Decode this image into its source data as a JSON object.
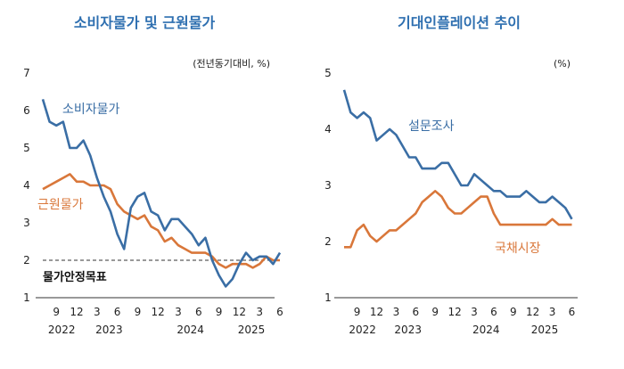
{
  "chart_data": [
    {
      "type": "line",
      "title": "소비자물가 및 근원물가",
      "unit_label": "(전년동기대비, %)",
      "ylim": [
        1,
        7
      ],
      "yticks": [
        "1",
        "2",
        "3",
        "4",
        "5",
        "6",
        "7"
      ],
      "x_tick_labels": [
        "9",
        "12",
        "3",
        "6",
        "9",
        "12",
        "3",
        "6",
        "9",
        "12",
        "3",
        "6"
      ],
      "year_labels": [
        "2022",
        "2023",
        "2024",
        "2025"
      ],
      "x": [
        "2022-07",
        "2022-08",
        "2022-09",
        "2022-10",
        "2022-11",
        "2022-12",
        "2023-01",
        "2023-02",
        "2023-03",
        "2023-04",
        "2023-05",
        "2023-06",
        "2023-07",
        "2023-08",
        "2023-09",
        "2023-10",
        "2023-11",
        "2023-12",
        "2024-01",
        "2024-02",
        "2024-03",
        "2024-04",
        "2024-05",
        "2024-06",
        "2024-07",
        "2024-08",
        "2024-09",
        "2024-10",
        "2024-11",
        "2024-12",
        "2025-01",
        "2025-02",
        "2025-03",
        "2025-04",
        "2025-05",
        "2025-06"
      ],
      "series": [
        {
          "name": "소비자물가",
          "color": "#3a6ea5",
          "values": [
            6.3,
            5.7,
            5.6,
            5.7,
            5.0,
            5.0,
            5.2,
            4.8,
            4.2,
            3.7,
            3.3,
            2.7,
            2.3,
            3.4,
            3.7,
            3.8,
            3.3,
            3.2,
            2.8,
            3.1,
            3.1,
            2.9,
            2.7,
            2.4,
            2.6,
            2.0,
            1.6,
            1.3,
            1.5,
            1.9,
            2.2,
            2.0,
            2.1,
            2.1,
            1.9,
            2.2
          ]
        },
        {
          "name": "근원물가",
          "color": "#d9773a",
          "values": [
            3.9,
            4.0,
            4.1,
            4.2,
            4.3,
            4.1,
            4.1,
            4.0,
            4.0,
            4.0,
            3.9,
            3.5,
            3.3,
            3.2,
            3.1,
            3.2,
            2.9,
            2.8,
            2.5,
            2.6,
            2.4,
            2.3,
            2.2,
            2.2,
            2.2,
            2.1,
            1.9,
            1.8,
            1.9,
            1.9,
            1.9,
            1.8,
            1.9,
            2.1,
            2.0,
            2.0
          ]
        }
      ],
      "target_line": {
        "value": 2.0,
        "label": "물가안정목표"
      }
    },
    {
      "type": "line",
      "title": "기대인플레이션 추이",
      "unit_label": "(%)",
      "ylim": [
        1,
        5
      ],
      "yticks": [
        "1",
        "2",
        "3",
        "4",
        "5"
      ],
      "x_tick_labels": [
        "9",
        "12",
        "3",
        "6",
        "9",
        "12",
        "3",
        "6",
        "9",
        "12",
        "3",
        "6"
      ],
      "year_labels": [
        "2022",
        "2023",
        "2024",
        "2025"
      ],
      "x": [
        "2022-07",
        "2022-08",
        "2022-09",
        "2022-10",
        "2022-11",
        "2022-12",
        "2023-01",
        "2023-02",
        "2023-03",
        "2023-04",
        "2023-05",
        "2023-06",
        "2023-07",
        "2023-08",
        "2023-09",
        "2023-10",
        "2023-11",
        "2023-12",
        "2024-01",
        "2024-02",
        "2024-03",
        "2024-04",
        "2024-05",
        "2024-06",
        "2024-07",
        "2024-08",
        "2024-09",
        "2024-10",
        "2024-11",
        "2024-12",
        "2025-01",
        "2025-02",
        "2025-03",
        "2025-04",
        "2025-05",
        "2025-06"
      ],
      "series": [
        {
          "name": "설문조사",
          "color": "#3a6ea5",
          "values": [
            4.7,
            4.3,
            4.2,
            4.3,
            4.2,
            3.8,
            3.9,
            4.0,
            3.9,
            3.7,
            3.5,
            3.5,
            3.3,
            3.3,
            3.3,
            3.4,
            3.4,
            3.2,
            3.0,
            3.0,
            3.2,
            3.1,
            3.0,
            2.9,
            2.9,
            2.8,
            2.8,
            2.8,
            2.9,
            2.8,
            2.7,
            2.7,
            2.8,
            2.7,
            2.6,
            2.4
          ]
        },
        {
          "name": "국채시장",
          "color": "#d9773a",
          "values": [
            1.9,
            1.9,
            2.2,
            2.3,
            2.1,
            2.0,
            2.1,
            2.2,
            2.2,
            2.3,
            2.4,
            2.5,
            2.7,
            2.8,
            2.9,
            2.8,
            2.6,
            2.5,
            2.5,
            2.6,
            2.7,
            2.8,
            2.8,
            2.5,
            2.3,
            2.3,
            2.3,
            2.3,
            2.3,
            2.3,
            2.3,
            2.3,
            2.4,
            2.3,
            2.3,
            2.3
          ]
        }
      ]
    }
  ]
}
